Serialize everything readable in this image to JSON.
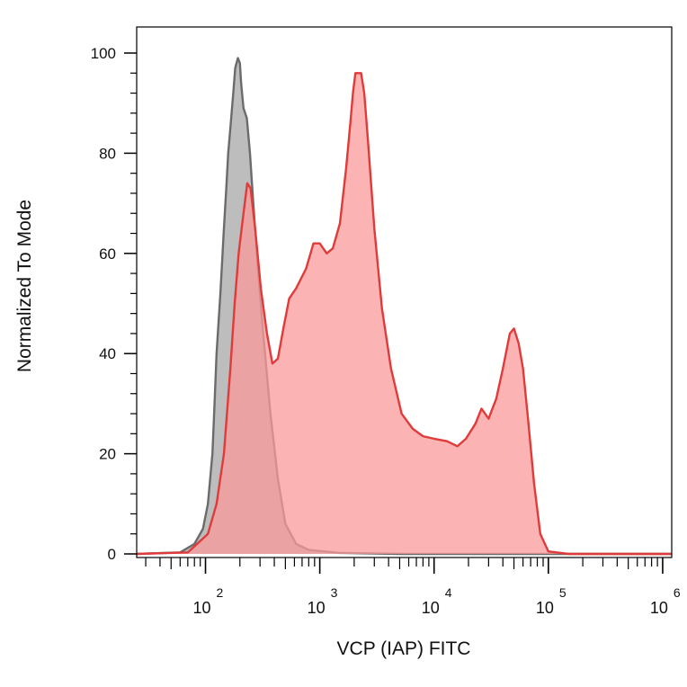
{
  "chart_data": {
    "type": "area",
    "title": "",
    "xlabel": "VCP (IAP) FITC",
    "ylabel": "Normalized To Mode",
    "x_scale": "log",
    "xlim": [
      25,
      1200000
    ],
    "ylim": [
      0,
      105
    ],
    "x_ticks": [
      {
        "value": 100,
        "base": "10",
        "exp": "2"
      },
      {
        "value": 1000,
        "base": "10",
        "exp": "3"
      },
      {
        "value": 10000,
        "base": "10",
        "exp": "4"
      },
      {
        "value": 100000,
        "base": "10",
        "exp": "5"
      },
      {
        "value": 1000000,
        "base": "10",
        "exp": "6"
      }
    ],
    "y_ticks": [
      {
        "value": 0,
        "label": "0"
      },
      {
        "value": 20,
        "label": "20"
      },
      {
        "value": 40,
        "label": "40"
      },
      {
        "value": 60,
        "label": "60"
      },
      {
        "value": 80,
        "label": "80"
      },
      {
        "value": 100,
        "label": "100"
      }
    ],
    "grid": false,
    "series": [
      {
        "fill": "#bdbdbd",
        "stroke": "#6b6b6b",
        "points": [
          [
            25,
            0
          ],
          [
            60,
            0.3
          ],
          [
            80,
            2
          ],
          [
            95,
            5
          ],
          [
            105,
            10
          ],
          [
            115,
            20
          ],
          [
            120,
            30
          ],
          [
            125,
            40
          ],
          [
            135,
            52
          ],
          [
            145,
            65
          ],
          [
            152,
            73
          ],
          [
            158,
            80
          ],
          [
            165,
            85
          ],
          [
            175,
            92
          ],
          [
            182,
            97
          ],
          [
            192,
            99
          ],
          [
            200,
            98
          ],
          [
            205,
            94
          ],
          [
            215,
            89
          ],
          [
            230,
            87
          ],
          [
            245,
            80
          ],
          [
            262,
            70
          ],
          [
            285,
            58
          ],
          [
            320,
            44
          ],
          [
            370,
            28
          ],
          [
            430,
            15
          ],
          [
            500,
            6
          ],
          [
            620,
            2
          ],
          [
            800,
            0.8
          ],
          [
            1500,
            0.2
          ],
          [
            5000,
            0
          ],
          [
            1200000,
            0
          ]
        ]
      },
      {
        "fill": "#fb9a9a",
        "stroke": "#e03b3b",
        "points": [
          [
            25,
            0
          ],
          [
            70,
            0.3
          ],
          [
            105,
            4
          ],
          [
            125,
            10
          ],
          [
            145,
            20
          ],
          [
            165,
            37
          ],
          [
            180,
            50
          ],
          [
            195,
            60
          ],
          [
            215,
            68
          ],
          [
            232,
            74
          ],
          [
            248,
            73
          ],
          [
            272,
            65
          ],
          [
            305,
            53
          ],
          [
            345,
            44
          ],
          [
            385,
            38
          ],
          [
            430,
            39
          ],
          [
            480,
            45
          ],
          [
            540,
            51
          ],
          [
            620,
            53
          ],
          [
            760,
            57
          ],
          [
            880,
            62
          ],
          [
            1000,
            62
          ],
          [
            1150,
            60
          ],
          [
            1300,
            61
          ],
          [
            1500,
            66
          ],
          [
            1700,
            77
          ],
          [
            1850,
            86
          ],
          [
            1950,
            92
          ],
          [
            2050,
            96
          ],
          [
            2150,
            96
          ],
          [
            2300,
            96
          ],
          [
            2450,
            92
          ],
          [
            2650,
            82
          ],
          [
            3000,
            65
          ],
          [
            3500,
            49
          ],
          [
            4200,
            37
          ],
          [
            5200,
            28
          ],
          [
            6500,
            25
          ],
          [
            8000,
            23.5
          ],
          [
            10000,
            23
          ],
          [
            13000,
            22.5
          ],
          [
            16000,
            21.5
          ],
          [
            19000,
            23
          ],
          [
            23000,
            26
          ],
          [
            26000,
            29
          ],
          [
            30000,
            27
          ],
          [
            35000,
            31
          ],
          [
            40000,
            37
          ],
          [
            46000,
            44
          ],
          [
            50000,
            45
          ],
          [
            55000,
            42
          ],
          [
            60000,
            37
          ],
          [
            67000,
            26
          ],
          [
            75000,
            14
          ],
          [
            85000,
            4
          ],
          [
            100000,
            0.5
          ],
          [
            150000,
            0
          ],
          [
            1200000,
            0
          ]
        ]
      }
    ]
  }
}
